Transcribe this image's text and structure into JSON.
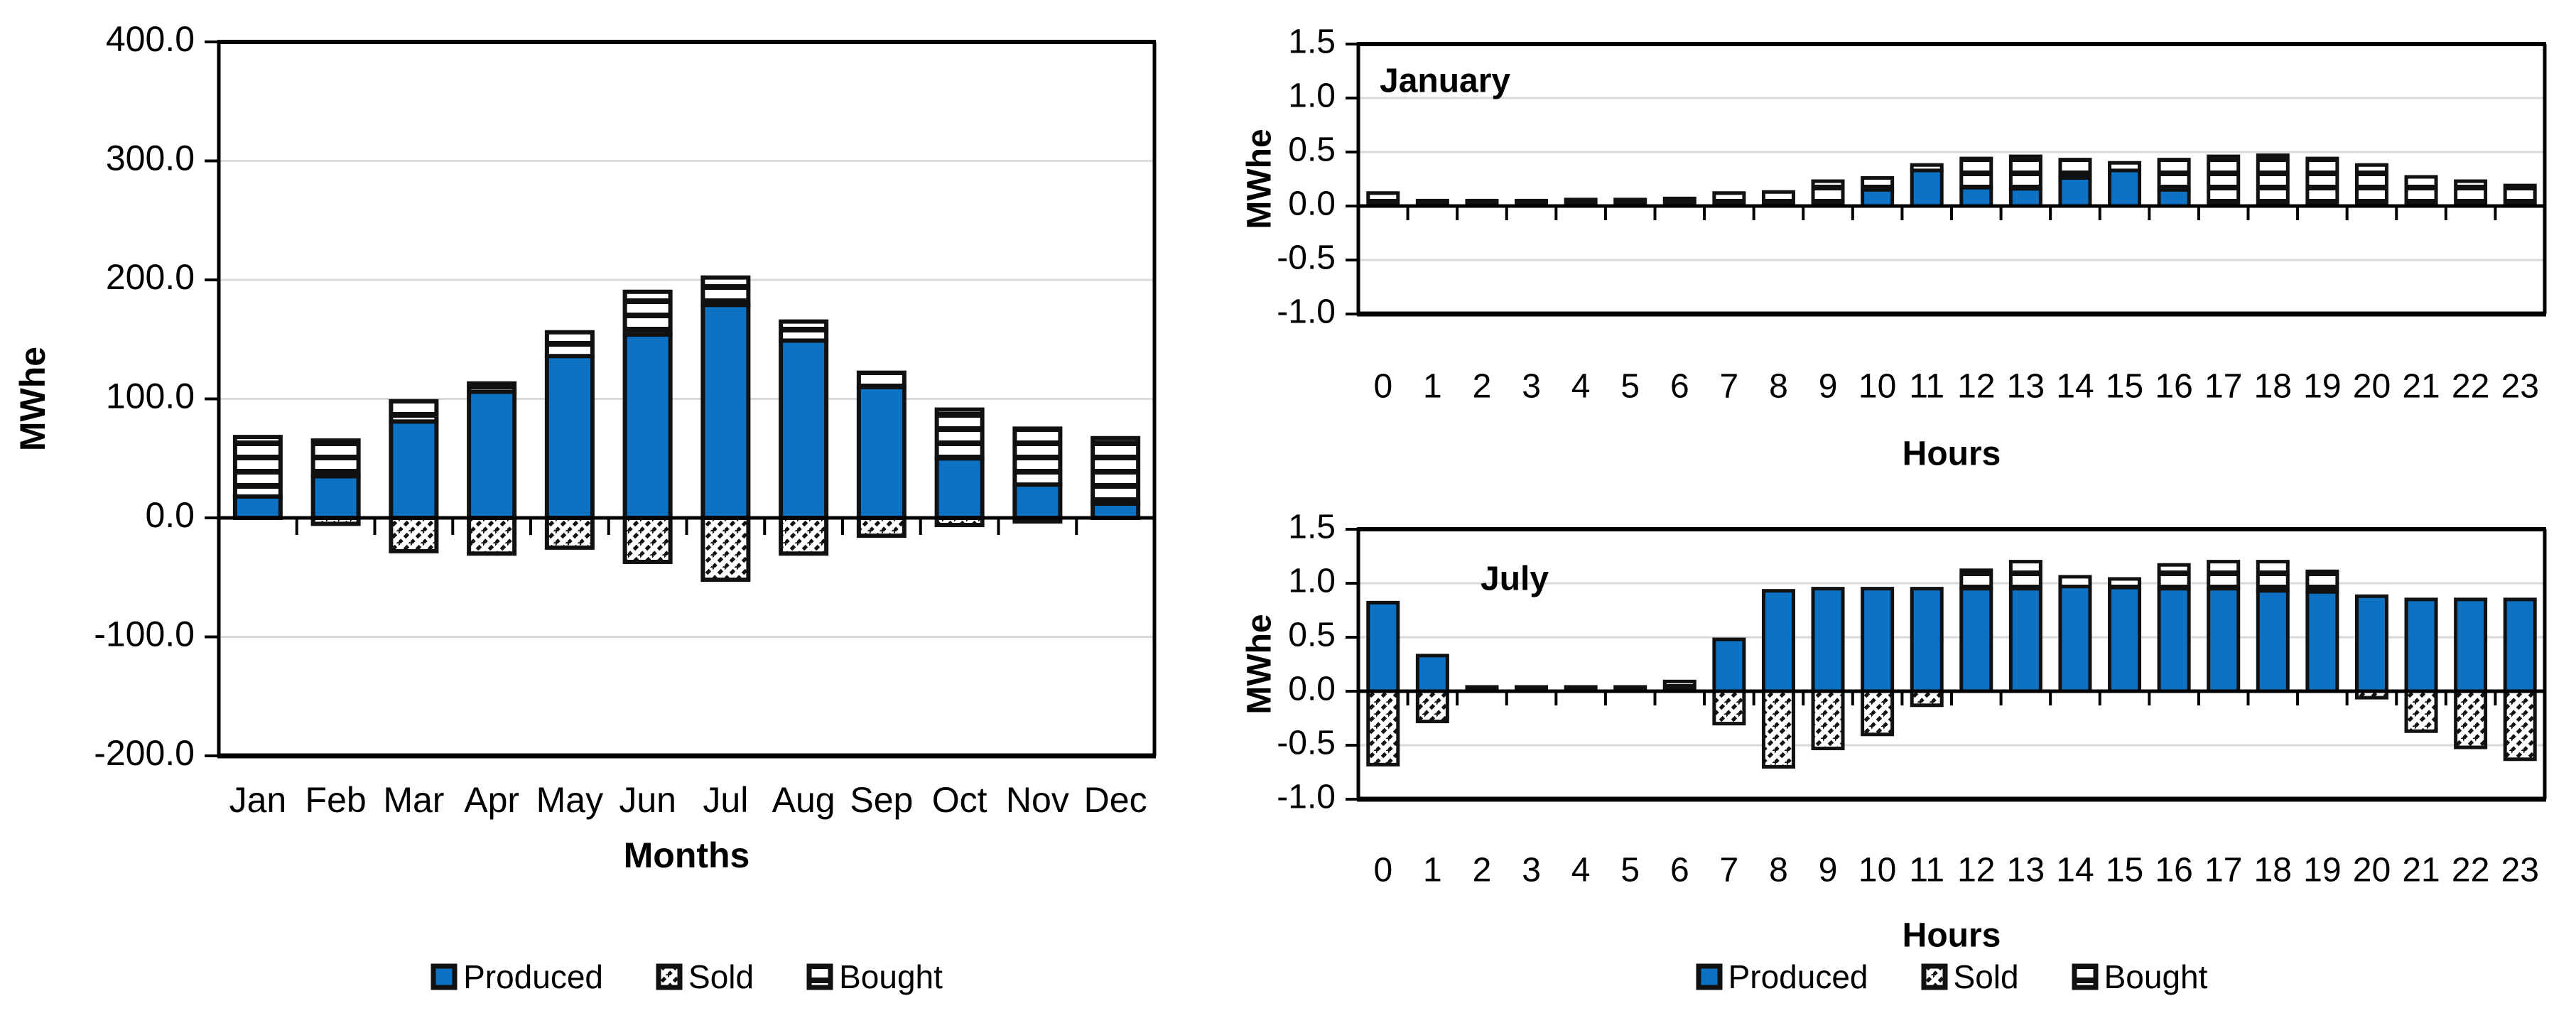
{
  "page": {
    "background": "#FFFFFF"
  },
  "colors": {
    "produced": "#0D72C4",
    "pattern_ink": "#111111",
    "bar_border": "#111111",
    "gridline": "#D9D9D9",
    "axis": "#000000",
    "text": "#000000"
  },
  "legend": {
    "produced": "Produced",
    "sold": "Sold",
    "bought": "Bought"
  },
  "chart_data": [
    {
      "id": "monthly",
      "type": "bar",
      "stacked": true,
      "title": "",
      "xlabel": "Months",
      "ylabel": "MWhe",
      "ylim": [
        -200,
        400
      ],
      "grid": true,
      "legend_position": "bottom",
      "yticks": [
        {
          "v": 400,
          "label": "400.0"
        },
        {
          "v": 300,
          "label": "300.0"
        },
        {
          "v": 200,
          "label": "200.0"
        },
        {
          "v": 100,
          "label": "100.0"
        },
        {
          "v": 0,
          "label": "0.0"
        },
        {
          "v": -100,
          "label": "-100.0"
        },
        {
          "v": -200,
          "label": "-200.0"
        }
      ],
      "categories": [
        "Jan",
        "Feb",
        "Mar",
        "Apr",
        "May",
        "Jun",
        "Jul",
        "Aug",
        "Sep",
        "Oct",
        "Nov",
        "Dec"
      ],
      "series": [
        {
          "name": "Produced",
          "role": "produced",
          "values": [
            18,
            35,
            81,
            106,
            136,
            154,
            179,
            149,
            110,
            50,
            28,
            12
          ]
        },
        {
          "name": "Sold",
          "role": "sold",
          "values": [
            0,
            -5,
            -28,
            -30,
            -25,
            -37,
            -52,
            -30,
            -15,
            -6,
            -3,
            0
          ]
        },
        {
          "name": "Bought",
          "role": "bought",
          "values": [
            50,
            30,
            17,
            7,
            20,
            36,
            23,
            16,
            12,
            41,
            47,
            55
          ]
        }
      ]
    },
    {
      "id": "january",
      "type": "bar",
      "stacked": true,
      "title": "January",
      "xlabel": "Hours",
      "ylabel": "MWhe",
      "ylim": [
        -1.0,
        1.5
      ],
      "grid": true,
      "legend_position": "bottom",
      "yticks": [
        {
          "v": 1.5,
          "label": "1.5"
        },
        {
          "v": 1.0,
          "label": "1.0"
        },
        {
          "v": 0.5,
          "label": "0.5"
        },
        {
          "v": 0.0,
          "label": "0.0"
        },
        {
          "v": -0.5,
          "label": "-0.5"
        },
        {
          "v": -1.0,
          "label": "-1.0"
        }
      ],
      "categories": [
        "0",
        "1",
        "2",
        "3",
        "4",
        "5",
        "6",
        "7",
        "8",
        "9",
        "10",
        "11",
        "12",
        "13",
        "14",
        "15",
        "16",
        "17",
        "18",
        "19",
        "20",
        "21",
        "22",
        "23"
      ],
      "series": [
        {
          "name": "Produced",
          "role": "produced",
          "values": [
            0,
            0,
            0,
            0,
            0,
            0,
            0,
            0,
            0,
            0,
            0.15,
            0.33,
            0.17,
            0.16,
            0.26,
            0.33,
            0.15,
            0,
            0,
            0,
            0,
            0,
            0,
            0
          ]
        },
        {
          "name": "Sold",
          "role": "sold",
          "values": [
            0,
            0,
            0,
            0,
            0,
            0,
            0,
            0,
            0,
            0,
            0,
            0,
            0,
            0,
            0,
            0,
            0,
            0,
            0,
            0,
            0,
            0,
            0,
            0
          ]
        },
        {
          "name": "Bought",
          "role": "bought",
          "values": [
            0.12,
            0.05,
            0.05,
            0.05,
            0.06,
            0.06,
            0.07,
            0.12,
            0.13,
            0.23,
            0.11,
            0.05,
            0.27,
            0.3,
            0.17,
            0.07,
            0.28,
            0.46,
            0.47,
            0.44,
            0.38,
            0.27,
            0.23,
            0.19
          ]
        }
      ]
    },
    {
      "id": "july",
      "type": "bar",
      "stacked": true,
      "title": "July",
      "xlabel": "Hours",
      "ylabel": "MWhe",
      "ylim": [
        -1.0,
        1.5
      ],
      "grid": true,
      "legend_position": "bottom",
      "yticks": [
        {
          "v": 1.5,
          "label": "1.5"
        },
        {
          "v": 1.0,
          "label": "1.0"
        },
        {
          "v": 0.5,
          "label": "0.5"
        },
        {
          "v": 0.0,
          "label": "0.0"
        },
        {
          "v": -0.5,
          "label": "-0.5"
        },
        {
          "v": -1.0,
          "label": "-1.0"
        }
      ],
      "categories": [
        "0",
        "1",
        "2",
        "3",
        "4",
        "5",
        "6",
        "7",
        "8",
        "9",
        "10",
        "11",
        "12",
        "13",
        "14",
        "15",
        "16",
        "17",
        "18",
        "19",
        "20",
        "21",
        "22",
        "23"
      ],
      "series": [
        {
          "name": "Produced",
          "role": "produced",
          "values": [
            0.82,
            0.33,
            0,
            0,
            0,
            0,
            0,
            0.48,
            0.93,
            0.95,
            0.95,
            0.95,
            0.95,
            0.95,
            0.97,
            0.96,
            0.95,
            0.95,
            0.93,
            0.92,
            0.88,
            0.85,
            0.85,
            0.85
          ]
        },
        {
          "name": "Sold",
          "role": "sold",
          "values": [
            -0.68,
            -0.28,
            0,
            0,
            0,
            0,
            0,
            -0.3,
            -0.7,
            -0.53,
            -0.4,
            -0.13,
            0,
            0,
            0,
            0,
            0,
            0,
            0,
            0,
            -0.06,
            -0.37,
            -0.52,
            -0.63
          ]
        },
        {
          "name": "Bought",
          "role": "bought",
          "values": [
            0,
            0,
            0.04,
            0.04,
            0.04,
            0.04,
            0.09,
            0,
            0,
            0,
            0,
            0,
            0.17,
            0.25,
            0.09,
            0.08,
            0.22,
            0.25,
            0.27,
            0.19,
            0,
            0,
            0,
            0
          ]
        }
      ]
    }
  ]
}
